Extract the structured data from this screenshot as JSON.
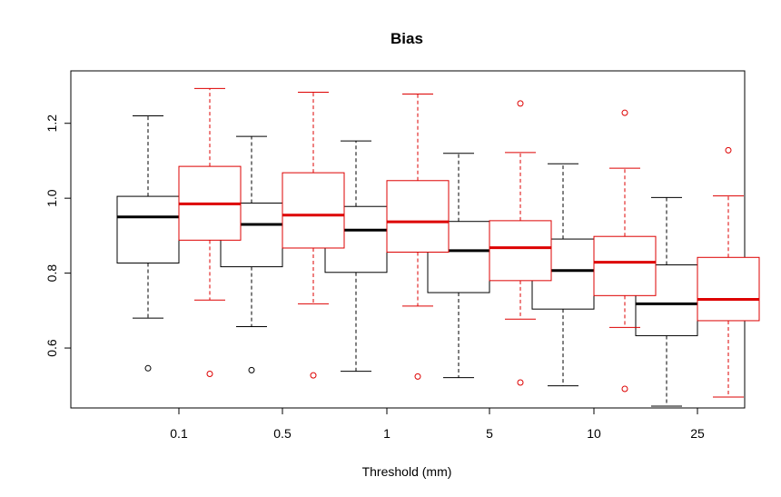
{
  "chart_data": {
    "type": "boxplot",
    "title": "Bias",
    "xlabel": "Threshold (mm)",
    "ylabel": "",
    "categories": [
      "0.1",
      "0.5",
      "1",
      "5",
      "10",
      "25"
    ],
    "ylim": [
      0.44,
      1.34
    ],
    "yticks": [
      0.6,
      0.8,
      1.0,
      1.2
    ],
    "ytick_labels": [
      "0.6",
      "0.8",
      "1.0",
      "1.2"
    ],
    "series": [
      {
        "color": "#000000",
        "boxes": [
          {
            "whisker_low": 0.68,
            "q1": 0.827,
            "median": 0.95,
            "q3": 1.005,
            "whisker_high": 1.22,
            "outliers": [
              0.546
            ]
          },
          {
            "whisker_low": 0.657,
            "q1": 0.817,
            "median": 0.93,
            "q3": 0.987,
            "whisker_high": 1.165,
            "outliers": [
              0.541
            ]
          },
          {
            "whisker_low": 0.538,
            "q1": 0.802,
            "median": 0.915,
            "q3": 0.978,
            "whisker_high": 1.153,
            "outliers": []
          },
          {
            "whisker_low": 0.521,
            "q1": 0.748,
            "median": 0.86,
            "q3": 0.938,
            "whisker_high": 1.12,
            "outliers": []
          },
          {
            "whisker_low": 0.499,
            "q1": 0.704,
            "median": 0.807,
            "q3": 0.891,
            "whisker_high": 1.092,
            "outliers": []
          },
          {
            "whisker_low": 0.445,
            "q1": 0.633,
            "median": 0.718,
            "q3": 0.822,
            "whisker_high": 1.002,
            "outliers": []
          }
        ]
      },
      {
        "color": "#dd0000",
        "boxes": [
          {
            "whisker_low": 0.728,
            "q1": 0.888,
            "median": 0.985,
            "q3": 1.085,
            "whisker_high": 1.293,
            "outliers": [
              0.531
            ]
          },
          {
            "whisker_low": 0.718,
            "q1": 0.867,
            "median": 0.955,
            "q3": 1.068,
            "whisker_high": 1.283,
            "outliers": [
              0.527
            ]
          },
          {
            "whisker_low": 0.712,
            "q1": 0.856,
            "median": 0.937,
            "q3": 1.047,
            "whisker_high": 1.278,
            "outliers": [
              0.524
            ]
          },
          {
            "whisker_low": 0.677,
            "q1": 0.78,
            "median": 0.868,
            "q3": 0.94,
            "whisker_high": 1.122,
            "outliers": [
              0.508,
              1.253
            ]
          },
          {
            "whisker_low": 0.655,
            "q1": 0.74,
            "median": 0.829,
            "q3": 0.898,
            "whisker_high": 1.08,
            "outliers": [
              0.491,
              1.228
            ]
          },
          {
            "whisker_low": 0.469,
            "q1": 0.673,
            "median": 0.73,
            "q3": 0.842,
            "whisker_high": 1.006,
            "outliers": [
              1.128
            ]
          }
        ]
      }
    ]
  }
}
